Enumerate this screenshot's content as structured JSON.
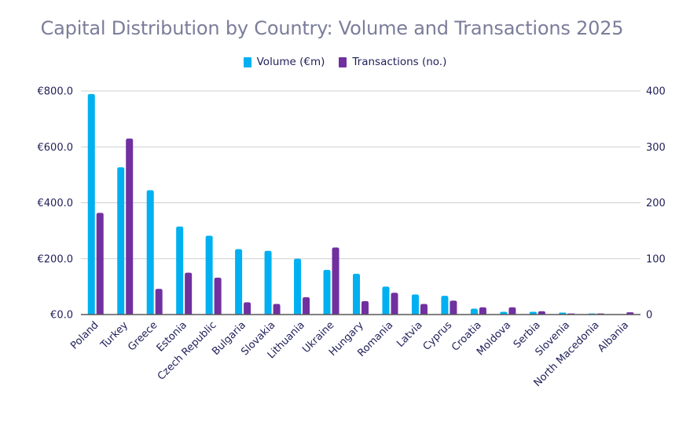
{
  "chart_data": {
    "type": "bar",
    "title": "Capital Distribution by Country: Volume and Transactions 2025",
    "xlabel": "",
    "ylabel": "",
    "y2label": "",
    "categories": [
      "Poland",
      "Turkey",
      "Greece",
      "Estonia",
      "Czech Republic",
      "Bulgaria",
      "Slovakia",
      "Lithuania",
      "Ukraine",
      "Hungary",
      "Romania",
      "Latvia",
      "Cyprus",
      "Croatia",
      "Moldova",
      "Serbia",
      "Slovenia",
      "North Macedonia",
      "Albania"
    ],
    "series": [
      {
        "name": "Volume (€m)",
        "axis": "left",
        "color": "#00b0f0",
        "values": [
          789,
          527,
          445,
          315,
          282,
          234,
          228,
          200,
          160,
          146,
          100,
          72,
          67,
          21,
          10,
          10,
          7,
          4,
          0
        ]
      },
      {
        "name": "Transactions (no.)",
        "axis": "right",
        "color": "#7030a0",
        "values": [
          182,
          315,
          46,
          75,
          66,
          22,
          19,
          31,
          120,
          24,
          39,
          19,
          25,
          13,
          13,
          6,
          2,
          2,
          4
        ]
      }
    ],
    "ylim": [
      0,
      800
    ],
    "y2lim": [
      0,
      400
    ],
    "y_ticks": [
      "€0.0",
      "€200.0",
      "€400.0",
      "€600.0",
      "€800.0"
    ],
    "y_tick_values": [
      0,
      200,
      400,
      600,
      800
    ],
    "y2_ticks": [
      "0",
      "100",
      "200",
      "300",
      "400"
    ],
    "y2_tick_values": [
      0,
      100,
      200,
      300,
      400
    ],
    "grid": true,
    "legend_position": "top-center"
  },
  "colors": {
    "title": "#7b7d9a",
    "text": "#1f1f5a",
    "grid": "#cfcfcf",
    "axis": "#595959"
  }
}
